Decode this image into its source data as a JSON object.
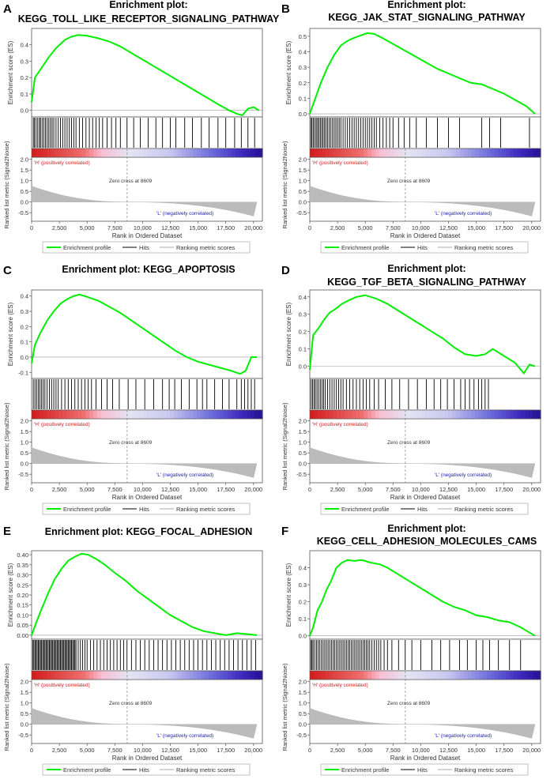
{
  "panels": [
    {
      "letter": "A",
      "title_lines": [
        "Enrichment plot:",
        "KEGG_TOLL_LIKE_RECEPTOR_SIGNALING_PATHWAY"
      ],
      "es_ticks": [
        "0.0",
        "0.1",
        "0.2",
        "0.3",
        "0.4"
      ],
      "chart_data": {
        "type": "line",
        "title": "Enrichment plot: KEGG_TOLL_LIKE_RECEPTOR_SIGNALING_PATHWAY",
        "xlabel": "Rank in Ordered Dataset",
        "ylabel": "Enrichment score (ES)",
        "ylim": [
          -0.04,
          0.5
        ],
        "xlim": [
          0,
          20800
        ],
        "x": [
          0,
          300,
          800,
          1500,
          2200,
          3000,
          3600,
          4200,
          5000,
          6000,
          7000,
          8000,
          9000,
          10000,
          11000,
          12000,
          13000,
          14000,
          15000,
          16000,
          17000,
          17800,
          18500,
          19000,
          19500,
          20000,
          20500
        ],
        "values": [
          0.05,
          0.2,
          0.25,
          0.32,
          0.38,
          0.43,
          0.45,
          0.46,
          0.455,
          0.44,
          0.42,
          0.39,
          0.35,
          0.31,
          0.27,
          0.23,
          0.19,
          0.15,
          0.11,
          0.07,
          0.03,
          0.0,
          -0.02,
          -0.03,
          0.01,
          0.02,
          0.0
        ],
        "hits": [
          150,
          250,
          400,
          550,
          700,
          800,
          950,
          1100,
          1250,
          1400,
          1550,
          1700,
          1850,
          2000,
          2200,
          2400,
          2600,
          2800,
          3000,
          3200,
          3400,
          3600,
          3800,
          4000,
          4300,
          4600,
          4900,
          5200,
          5500,
          5800,
          6100,
          6400,
          6800,
          7200,
          7600,
          8000,
          8600,
          9200,
          9800,
          10500,
          11200,
          11800,
          12500,
          13000,
          13800,
          14500,
          15300,
          16000,
          16800,
          17500,
          18300,
          18900,
          19500,
          20100
        ]
      }
    },
    {
      "letter": "B",
      "title_lines": [
        "Enrichment plot:",
        "KEGG_JAK_STAT_SIGNALING_PATHWAY"
      ],
      "es_ticks": [
        "0.0",
        "0.1",
        "0.2",
        "0.3",
        "0.4",
        "0.5"
      ],
      "chart_data": {
        "type": "line",
        "title": "Enrichment plot: KEGG_JAK_STAT_SIGNALING_PATHWAY",
        "xlabel": "Rank in Ordered Dataset",
        "ylabel": "Enrichment score (ES)",
        "ylim": [
          -0.02,
          0.55
        ],
        "xlim": [
          0,
          20800
        ],
        "x": [
          0,
          500,
          1000,
          1600,
          2200,
          2800,
          3400,
          4000,
          4600,
          5200,
          5800,
          6500,
          7500,
          8500,
          9500,
          10500,
          11500,
          12500,
          13500,
          14500,
          15500,
          16500,
          17500,
          18500,
          19500,
          20300
        ],
        "values": [
          0.0,
          0.1,
          0.2,
          0.3,
          0.38,
          0.44,
          0.47,
          0.49,
          0.505,
          0.52,
          0.515,
          0.49,
          0.45,
          0.41,
          0.37,
          0.33,
          0.29,
          0.26,
          0.23,
          0.2,
          0.19,
          0.16,
          0.13,
          0.09,
          0.05,
          0.0
        ],
        "hits": [
          100,
          200,
          320,
          450,
          580,
          700,
          820,
          950,
          1080,
          1200,
          1330,
          1460,
          1600,
          1750,
          1900,
          2050,
          2200,
          2350,
          2500,
          2650,
          2800,
          3000,
          3200,
          3400,
          3600,
          3800,
          4000,
          4200,
          4400,
          4600,
          4800,
          5000,
          5200,
          5400,
          5600,
          5800,
          6000,
          6300,
          6600,
          6900,
          7200,
          7500,
          8000,
          8500,
          9000,
          9600,
          10500,
          11500,
          12500,
          13500,
          15500,
          16200,
          17200,
          19800
        ]
      }
    },
    {
      "letter": "C",
      "title_lines": [
        "Enrichment plot: KEGG_APOPTOSIS"
      ],
      "es_ticks": [
        "-0.1",
        "0.0",
        "0.1",
        "0.2",
        "0.3",
        "0.4"
      ],
      "chart_data": {
        "type": "line",
        "title": "Enrichment plot: KEGG_APOPTOSIS",
        "xlabel": "Rank in Ordered Dataset",
        "ylabel": "Enrichment score (ES)",
        "ylim": [
          -0.14,
          0.44
        ],
        "xlim": [
          0,
          20800
        ],
        "x": [
          0,
          300,
          800,
          1400,
          2000,
          2600,
          3200,
          3800,
          4300,
          5000,
          6000,
          7000,
          8000,
          9000,
          10000,
          11000,
          12000,
          13000,
          14000,
          15000,
          16000,
          17000,
          18000,
          18800,
          19300,
          19800,
          20300
        ],
        "values": [
          -0.04,
          0.08,
          0.16,
          0.24,
          0.3,
          0.35,
          0.38,
          0.4,
          0.41,
          0.395,
          0.37,
          0.33,
          0.29,
          0.24,
          0.19,
          0.14,
          0.09,
          0.04,
          0.0,
          -0.03,
          -0.05,
          -0.07,
          -0.09,
          -0.11,
          -0.09,
          0.0,
          0.0
        ],
        "hits": [
          150,
          300,
          450,
          600,
          750,
          900,
          1050,
          1200,
          1400,
          1600,
          1800,
          2000,
          2200,
          2400,
          2700,
          3000,
          3300,
          3600,
          3900,
          4200,
          4500,
          4800,
          5100,
          5400,
          5800,
          6300,
          6800,
          7300,
          7900,
          8700,
          9400,
          10200,
          11000,
          11800,
          12400,
          12900,
          13500,
          14200,
          14900,
          15400,
          15800,
          16500,
          17200,
          17800,
          18500,
          18900,
          19200,
          19500,
          19800,
          20100
        ]
      }
    },
    {
      "letter": "D",
      "title_lines": [
        "Enrichment plot:",
        "KEGG_TGF_BETA_SIGNALING_PATHWAY"
      ],
      "es_ticks": [
        "0.0",
        "0.1",
        "0.2",
        "0.3",
        "0.4"
      ],
      "chart_data": {
        "type": "line",
        "title": "Enrichment plot: KEGG_TGF_BETA_SIGNALING_PATHWAY",
        "xlabel": "Rank in Ordered Dataset",
        "ylabel": "Enrichment score (ES)",
        "ylim": [
          -0.07,
          0.44
        ],
        "xlim": [
          0,
          20800
        ],
        "x": [
          0,
          300,
          800,
          1300,
          1800,
          2300,
          2900,
          3500,
          4200,
          5000,
          6000,
          7000,
          8000,
          9000,
          10000,
          11000,
          12000,
          13000,
          14000,
          15000,
          15800,
          16500,
          17500,
          18500,
          19300,
          19800,
          20300
        ],
        "values": [
          -0.02,
          0.18,
          0.22,
          0.27,
          0.31,
          0.33,
          0.36,
          0.38,
          0.4,
          0.41,
          0.39,
          0.36,
          0.32,
          0.28,
          0.24,
          0.2,
          0.16,
          0.11,
          0.07,
          0.06,
          0.07,
          0.1,
          0.06,
          0.02,
          -0.04,
          0.01,
          0.0
        ],
        "hits": [
          120,
          250,
          380,
          500,
          650,
          800,
          950,
          1100,
          1250,
          1400,
          1600,
          1800,
          2000,
          2200,
          2400,
          2600,
          2800,
          3000,
          3300,
          3600,
          3900,
          4200,
          4500,
          4800,
          5100,
          5400,
          5800,
          6200,
          6800,
          7400,
          8100,
          8900,
          9700,
          10500,
          11200,
          11800,
          12400,
          13000,
          13600,
          14000,
          14400,
          14800,
          15200,
          15500,
          15800,
          16100
        ]
      }
    },
    {
      "letter": "E",
      "title_lines": [
        "Enrichment plot: KEGG_FOCAL_ADHESION"
      ],
      "es_ticks": [
        "0.00",
        "0.05",
        "0.10",
        "0.15",
        "0.20",
        "0.25",
        "0.30",
        "0.35",
        "0.40"
      ],
      "chart_data": {
        "type": "line",
        "title": "Enrichment plot: KEGG_FOCAL_ADHESION",
        "xlabel": "Rank in Ordered Dataset",
        "ylabel": "Enrichment score (ES)",
        "ylim": [
          -0.02,
          0.42
        ],
        "xlim": [
          0,
          20800
        ],
        "x": [
          0,
          400,
          900,
          1500,
          2100,
          2700,
          3300,
          3900,
          4500,
          5100,
          5800,
          6600,
          7500,
          8500,
          9500,
          10500,
          11500,
          12500,
          13500,
          14500,
          15500,
          16500,
          17500,
          18500,
          19500,
          20300
        ],
        "values": [
          0.0,
          0.06,
          0.13,
          0.21,
          0.28,
          0.33,
          0.37,
          0.39,
          0.405,
          0.4,
          0.38,
          0.35,
          0.31,
          0.27,
          0.22,
          0.18,
          0.14,
          0.1,
          0.07,
          0.04,
          0.02,
          0.01,
          0.0,
          0.01,
          0.005,
          0.0
        ],
        "hits": [
          100,
          200,
          300,
          400,
          500,
          600,
          700,
          800,
          900,
          1000,
          1100,
          1200,
          1300,
          1400,
          1500,
          1600,
          1700,
          1800,
          1900,
          2000,
          2100,
          2200,
          2300,
          2400,
          2500,
          2600,
          2700,
          2800,
          2900,
          3000,
          3100,
          3200,
          3300,
          3400,
          3500,
          3600,
          3700,
          3800,
          3900,
          4000,
          4200,
          4400,
          4600,
          4800,
          5000,
          5300,
          5600,
          5900,
          6200,
          6500,
          6800,
          7100,
          7400,
          7700,
          8000,
          8300,
          8600,
          9000,
          9400,
          9800,
          10200,
          10600,
          11000,
          11400,
          11800,
          12200,
          12600,
          13000,
          13400,
          13800,
          14200,
          14600,
          15000,
          15400,
          15800,
          16200,
          16600,
          17000,
          17400,
          17800,
          18200,
          18600,
          19000,
          19400,
          19800,
          20200
        ]
      }
    },
    {
      "letter": "F",
      "title_lines": [
        "Enrichment plot:",
        "KEGG_CELL_ADHESION_MOLECULES_CAMS"
      ],
      "es_ticks": [
        "0.0",
        "0.1",
        "0.2",
        "0.3",
        "0.4"
      ],
      "chart_data": {
        "type": "line",
        "title": "Enrichment plot: KEGG_CELL_ADHESION_MOLECULES_CAMS",
        "xlabel": "Rank in Ordered Dataset",
        "ylabel": "Enrichment score (ES)",
        "ylim": [
          -0.02,
          0.5
        ],
        "xlim": [
          0,
          20800
        ],
        "x": [
          0,
          300,
          700,
          1100,
          1500,
          1900,
          2400,
          2900,
          3400,
          4000,
          4700,
          5500,
          6300,
          7000,
          8000,
          9000,
          10000,
          11000,
          12000,
          13000,
          14000,
          15000,
          16000,
          17000,
          18000,
          19000,
          20300
        ],
        "values": [
          0.0,
          0.05,
          0.15,
          0.2,
          0.27,
          0.32,
          0.4,
          0.43,
          0.445,
          0.44,
          0.445,
          0.43,
          0.42,
          0.4,
          0.36,
          0.32,
          0.28,
          0.24,
          0.2,
          0.17,
          0.15,
          0.12,
          0.11,
          0.09,
          0.08,
          0.05,
          0.0
        ],
        "hits": [
          100,
          200,
          300,
          450,
          600,
          750,
          900,
          1050,
          1200,
          1350,
          1500,
          1650,
          1800,
          1950,
          2100,
          2250,
          2400,
          2550,
          2700,
          2850,
          3000,
          3150,
          3300,
          3450,
          3600,
          3750,
          3900,
          4050,
          4200,
          4350,
          4500,
          4650,
          4800,
          4950,
          5100,
          5250,
          5400,
          5600,
          5800,
          6000,
          6200,
          6400,
          6700,
          7000,
          7400,
          8000,
          8600,
          9200,
          10000,
          11000,
          11800,
          12600,
          13500,
          14200,
          15000,
          15600,
          16200,
          17000,
          18000,
          19000
        ]
      }
    }
  ],
  "labels": {
    "es_axis": "Enrichment score (ES)",
    "metric_axis": "Ranked list metric (Signal2Noise)",
    "x_axis": "Rank in Ordered Dataset",
    "pos_corr": "'H' (positively correlated)",
    "neg_corr": "'L' (negatively correlated)",
    "zero_cross": "Zero cross at 8609",
    "legend_profile": "Enrichment profile",
    "legend_hits": "Hits",
    "legend_ranking": "Ranking metric scores"
  },
  "metric_ticks": [
    "2.0",
    "1.5",
    "1.0",
    "0.5",
    "0.0",
    "-0.5"
  ],
  "x_ticks": [
    "0",
    "2,500",
    "5,000",
    "7,500",
    "10,000",
    "12,500",
    "15,000",
    "17,500",
    "20,000"
  ],
  "x_tick_values": [
    0,
    2500,
    5000,
    7500,
    10000,
    12500,
    15000,
    17500,
    20000
  ],
  "metric_range": [
    -0.9,
    2.1
  ],
  "zero_cross_rank": 8609,
  "colors": {
    "profile": "#00ee00",
    "hits": "#000000",
    "ranking": "#bbbbbb",
    "pos": "#cc2222",
    "neg": "#2222aa"
  }
}
